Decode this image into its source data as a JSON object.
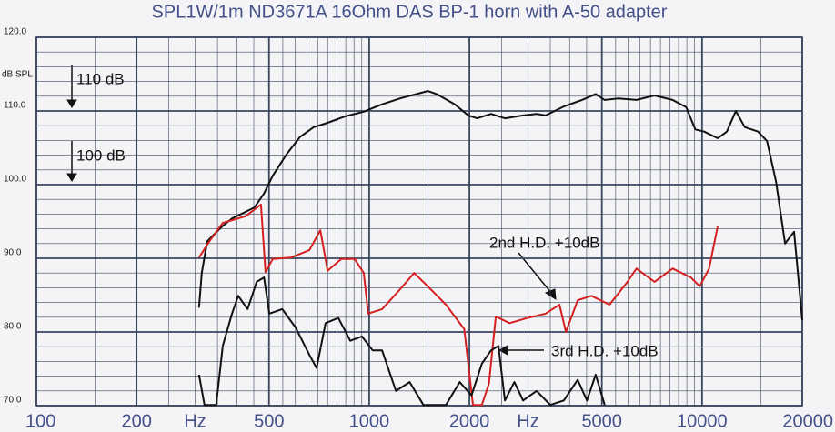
{
  "chart_data": {
    "type": "line",
    "title": "SPL1W/1m   ND3671A 16Ohm DAS BP-1 horn with A-50 adapter",
    "y_label": "dB SPL",
    "log_x": true,
    "grid": true,
    "xlim": [
      100,
      20000
    ],
    "xticks": [
      100,
      200,
      {
        "value": 300,
        "label": "Hz"
      },
      500,
      1000,
      2000,
      {
        "value": 3000,
        "label": "Hz"
      },
      5000,
      10000,
      20000
    ],
    "ylim": [
      70,
      120
    ],
    "yticks": [
      {
        "value": 70,
        "label": "70.0"
      },
      {
        "value": 80,
        "label": "80.0"
      },
      {
        "value": 90,
        "label": "90.0"
      },
      {
        "value": 100,
        "label": "100.0"
      },
      {
        "value": 110,
        "label": "110.0"
      },
      {
        "value": 120,
        "label": "120.0"
      }
    ],
    "annotations": [
      "110 dB",
      "100 dB",
      "2nd H.D. +10dB",
      "3rd H.D. +10dB"
    ],
    "series": [
      {
        "color": "#111111",
        "x": [
          308,
          314,
          326,
          341,
          363,
          387,
          412,
          452,
          483,
          513,
          564,
          620,
          681,
          750,
          850,
          963,
          1093,
          1239,
          1499,
          1594,
          1808,
          1984,
          2110,
          2322,
          2556,
          2900,
          3183,
          3387,
          3843,
          4360,
          4791,
          5100,
          5600,
          6350,
          7200,
          8160,
          8960,
          9540,
          10150,
          11150,
          11870,
          12630,
          13440,
          14740,
          15680,
          16690,
          17760,
          18900,
          20000
        ],
        "values": [
          83.3,
          88.0,
          92.3,
          93.2,
          94.4,
          95.4,
          96.0,
          96.9,
          98.8,
          101.2,
          104.1,
          106.5,
          107.8,
          108.4,
          109.3,
          109.9,
          110.9,
          111.7,
          112.7,
          112.3,
          110.9,
          109.4,
          109.0,
          109.6,
          109.0,
          109.4,
          109.6,
          109.4,
          110.6,
          111.5,
          112.3,
          111.5,
          111.7,
          111.5,
          112.1,
          111.5,
          110.5,
          107.5,
          107.2,
          106.3,
          107.2,
          110.0,
          107.8,
          107.2,
          105.9,
          100.4,
          92.0,
          93.6,
          81.6
        ]
      },
      {
        "color": "#d42020",
        "x": [
          308,
          331,
          363,
          425,
          473,
          488,
          513,
          582,
          661,
          713,
          750,
          824,
          904,
          963,
          993,
          1093,
          1239,
          1364,
          1499,
          1701,
          1930,
          2050,
          2180,
          2290,
          2400,
          2640,
          2990,
          3390,
          3730,
          3900,
          4230,
          4650,
          5270,
          5970,
          6350,
          7200,
          8160,
          9250,
          9840,
          10500,
          11150
        ],
        "values": [
          90.1,
          92.3,
          94.8,
          95.7,
          97.3,
          88.1,
          89.9,
          90.1,
          91.1,
          93.8,
          88.3,
          89.9,
          89.9,
          88.0,
          82.5,
          83.1,
          85.8,
          88.0,
          86.2,
          83.7,
          80.4,
          70.1,
          70.1,
          73.0,
          82.1,
          81.2,
          81.9,
          82.5,
          83.7,
          80.0,
          84.3,
          84.9,
          83.7,
          86.8,
          88.6,
          86.8,
          88.6,
          87.4,
          86.2,
          88.6,
          94.4
        ]
      },
      {
        "color": "#111111",
        "x": [
          308,
          320,
          347,
          363,
          387,
          404,
          431,
          459,
          483,
          501,
          548,
          601,
          661,
          695,
          739,
          808,
          877,
          951,
          1025,
          1093,
          1203,
          1323,
          1455,
          1701,
          1870,
          2030,
          2180,
          2322,
          2445,
          2556,
          2730,
          2900,
          3183,
          3500,
          3843,
          4230,
          4510,
          4791,
          5100
        ],
        "values": [
          74.2,
          70.1,
          70.1,
          78.1,
          82.5,
          84.9,
          83.1,
          86.8,
          87.4,
          82.5,
          83.1,
          80.6,
          76.9,
          75.1,
          81.2,
          81.9,
          78.8,
          79.4,
          77.5,
          77.5,
          72.0,
          73.2,
          70.1,
          70.1,
          73.2,
          71.4,
          75.7,
          77.5,
          78.1,
          70.7,
          73.2,
          70.7,
          72.0,
          70.1,
          70.7,
          73.5,
          70.7,
          74.2,
          70.1
        ]
      }
    ]
  }
}
